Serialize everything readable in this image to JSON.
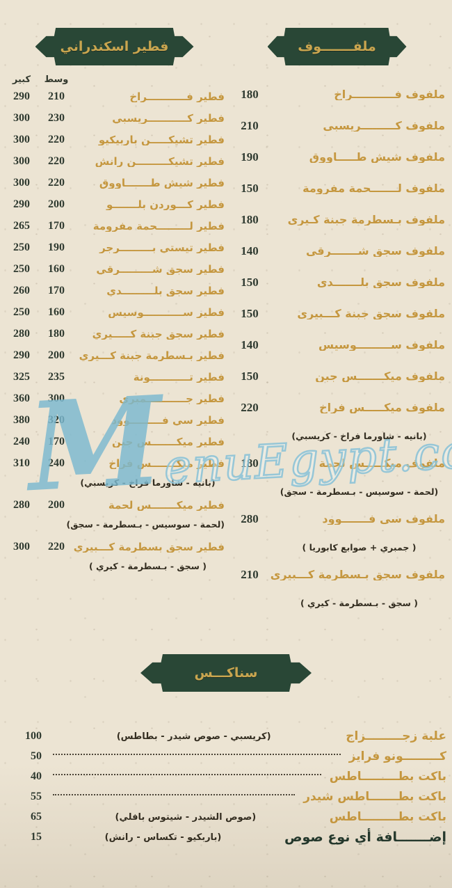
{
  "colors": {
    "background": "#ece4d3",
    "badge_green": "#2b4a39",
    "gold_item": "#c5973f",
    "badge_gold_text": "#c9a54f",
    "price_dark": "#2f3a30",
    "subtitle_dark": "#332d20",
    "watermark_blue": "#7cb8d0"
  },
  "watermark": {
    "initial": "M",
    "rest": "enuEgypt.com"
  },
  "fateer": {
    "title": "فطير اسكندراني",
    "size_medium": "وسط",
    "size_large": "كبير",
    "items": [
      {
        "name": "فطير فـــــــــــراخ",
        "medium": "210",
        "large": "290"
      },
      {
        "name": "فطير كـــــــــــريسبي",
        "medium": "230",
        "large": "300"
      },
      {
        "name": "فطير تشيكـــــن باربيكيو",
        "medium": "220",
        "large": "300"
      },
      {
        "name": "فطير تشيكـــــــــن رانش",
        "medium": "220",
        "large": "300"
      },
      {
        "name": "فطير شيش طـــــــاووق",
        "medium": "220",
        "large": "300"
      },
      {
        "name": "فطير كـــوردن بلـــــــو",
        "medium": "200",
        "large": "290"
      },
      {
        "name": "فطير لـــــــــحمة مفرومة",
        "medium": "170",
        "large": "265"
      },
      {
        "name": "فطير تيستي بـــــــــرجر",
        "medium": "190",
        "large": "250"
      },
      {
        "name": "فطير سجق شـــــــــرقي",
        "medium": "160",
        "large": "250"
      },
      {
        "name": "فطير سجق بلـــــــــدي",
        "medium": "170",
        "large": "260"
      },
      {
        "name": "فطير ســـــــــــوسيس",
        "medium": "160",
        "large": "250"
      },
      {
        "name": "فطير سجق جبنة كـــــيري",
        "medium": "180",
        "large": "280"
      },
      {
        "name": "فطير بـسطرمة جبنة كـــيري",
        "medium": "200",
        "large": "290"
      },
      {
        "name": "فطير تـــــــــــونة",
        "medium": "235",
        "large": "325"
      },
      {
        "name": "فطير جـــــــــــمبري",
        "medium": "300",
        "large": "360"
      },
      {
        "name": "فطير سي فـــــــــوود",
        "medium": "320",
        "large": "380"
      },
      {
        "name": "فطير ميكـــــــس جبن",
        "medium": "170",
        "large": "240"
      },
      {
        "name": "فطير ميكـــــــس فراخ",
        "medium": "240",
        "large": "310",
        "subtitle": "(بانيه - شاورما فراخ - كريسبي)"
      },
      {
        "name": "فطير ميكـــــــس لحمة",
        "medium": "200",
        "large": "280",
        "subtitle": "(لحمة - سوسيس - بـسطرمة - سجق)"
      },
      {
        "name": "فطير سجق بسطرمة كـــبيري",
        "medium": "220",
        "large": "300",
        "subtitle": "( سجق - بـسطرمة - كيري )"
      }
    ]
  },
  "malfouf": {
    "title": "ملفـــــــوف",
    "items": [
      {
        "name": "ملفوف فـــــــــــراخ",
        "price": "180"
      },
      {
        "name": "ملفوف كـــــــــريسبي",
        "price": "210"
      },
      {
        "name": "ملفوف شيش طـــــاووق",
        "price": "190"
      },
      {
        "name": "ملفوف لـــــــحمة مفرومة",
        "price": "150"
      },
      {
        "name": "ملفوف بـسطرمة جبنة كـيري",
        "price": "180"
      },
      {
        "name": "ملفوف سجق شـــــــرقي",
        "price": "140"
      },
      {
        "name": "ملفوف سجق بلـــــــدي",
        "price": "150"
      },
      {
        "name": "ملفوف سجق جبنة كـــبيري",
        "price": "150"
      },
      {
        "name": "ملفوف ســـــــــوسيس",
        "price": "140"
      },
      {
        "name": "ملفوف ميكـــــــس جبن",
        "price": "150"
      },
      {
        "name": "ملفوف ميكـــــس فراخ",
        "price": "220",
        "subtitle": "(بانيه - شاورما فراخ - كريسبي)"
      },
      {
        "name": "ملفوف ميكـــــس لحمة",
        "price": "180",
        "subtitle": "(لحمة - سوسيس - بـسطرمة - سجق)"
      },
      {
        "name": "ملفوف سي فـــــــوود",
        "price": "280",
        "subtitle": "( جمبري + صوابع كابوريا )"
      },
      {
        "name": "ملفوف سجق بـسطرمة كـــبيري",
        "price": "210",
        "subtitle": "( سجق - بـسطرمة - كيري )"
      }
    ]
  },
  "snacks": {
    "title": "سناكـــس",
    "items": [
      {
        "name": "علبة زجـــــــــزاج",
        "note": "(كريسبي - صوص شيدر - بطاطس)",
        "price": "100"
      },
      {
        "name": "كـــــــــونو فرايز",
        "price": "50"
      },
      {
        "name": "باكت بطـــــــــاطس",
        "price": "40"
      },
      {
        "name": "باكت بطـــــــاطس شيدر",
        "price": "55"
      },
      {
        "name": "باكت بطـــــــــاطس",
        "note": "(صوص الشيدر - شيتوس بافلي)",
        "price": "65"
      },
      {
        "name": "إضـــــــافة أي نوع صوص",
        "note": "(باربكيو - تكساس - رانش)",
        "price": "15"
      }
    ]
  }
}
